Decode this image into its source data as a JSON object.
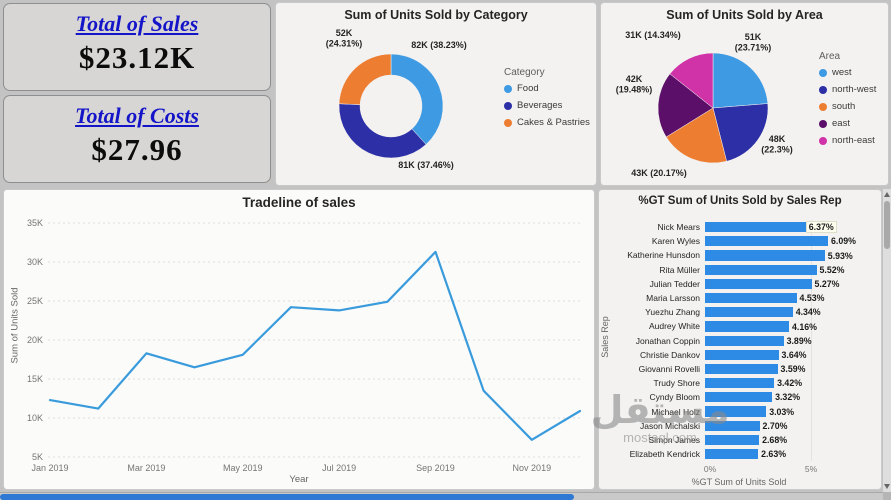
{
  "kpis": [
    {
      "title": "Total of Sales",
      "value": "$23.12K"
    },
    {
      "title": "Total of Costs",
      "value": "$27.96"
    }
  ],
  "chart_data": [
    {
      "type": "donut",
      "title": "Sum of Units Sold by Category",
      "legend_title": "Category",
      "legend_position": "right",
      "slices": [
        {
          "label": "Food",
          "value": "82K",
          "pct": 38.23,
          "pct_label": "(38.23%)",
          "color": "#3D9AE3"
        },
        {
          "label": "Beverages",
          "value": "81K",
          "pct": 37.46,
          "pct_label": "(37.46%)",
          "color": "#2C2FA5"
        },
        {
          "label": "Cakes & Pastries",
          "value": "52K",
          "pct": 24.31,
          "pct_label": "(24.31%)",
          "color": "#ED7D31"
        }
      ]
    },
    {
      "type": "pie",
      "title": "Sum of Units Sold by Area",
      "legend_title": "Area",
      "legend_position": "right",
      "slices": [
        {
          "label": "west",
          "value": "51K",
          "pct": 23.71,
          "pct_label": "(23.71%)",
          "color": "#3D9AE3"
        },
        {
          "label": "north-west",
          "value": "48K",
          "pct": 22.3,
          "pct_label": "(22.3%)",
          "color": "#2C2FA5"
        },
        {
          "label": "south",
          "value": "43K",
          "pct": 20.17,
          "pct_label": "(20.17%)",
          "color": "#ED7D31"
        },
        {
          "label": "east",
          "value": "42K",
          "pct": 19.48,
          "pct_label": "(19.48%)",
          "color": "#5B0F69"
        },
        {
          "label": "north-east",
          "value": "31K",
          "pct": 14.34,
          "pct_label": "(14.34%)",
          "color": "#D032A8"
        }
      ]
    },
    {
      "type": "line",
      "title": "Tradeline of sales",
      "xlabel": "Year",
      "ylabel": "Sum of Units Sold",
      "x": [
        "Jan 2019",
        "Feb 2019",
        "Mar 2019",
        "Apr 2019",
        "May 2019",
        "Jun 2019",
        "Jul 2019",
        "Aug 2019",
        "Sep 2019",
        "Oct 2019",
        "Nov 2019",
        "Dec 2019"
      ],
      "values": [
        12300,
        11200,
        18300,
        16500,
        18100,
        24200,
        23800,
        24900,
        31300,
        13500,
        7200,
        10900
      ],
      "x_tick_labels": [
        "Jan 2019",
        "Mar 2019",
        "May 2019",
        "Jul 2019",
        "Sep 2019",
        "Nov 2019"
      ],
      "y_tick_labels": [
        "5K",
        "10K",
        "15K",
        "20K",
        "25K",
        "30K",
        "35K"
      ],
      "ylim": [
        5000,
        35000
      ],
      "grid": true,
      "line_color": "#3A9BDC"
    },
    {
      "type": "bar",
      "orientation": "horizontal",
      "title": "%GT Sum of Units Sold by Sales Rep",
      "xlabel": "%GT Sum of Units Sold",
      "ylabel": "Sales Rep",
      "categories": [
        "Nick Mears",
        "Karen Wyles",
        "Katherine Hunsdon",
        "Rita Müller",
        "Julian Tedder",
        "Maria Larsson",
        "Yuezhu Zhang",
        "Audrey White",
        "Jonathan Coppin",
        "Christie Dankov",
        "Giovanni Rovelli",
        "Trudy Shore",
        "Cyndy Bloom",
        "Michael Holz",
        "Jason Michalski",
        "Simon James",
        "Elizabeth Kendrick"
      ],
      "values": [
        6.37,
        6.09,
        5.93,
        5.52,
        5.27,
        4.53,
        4.34,
        4.16,
        3.89,
        3.64,
        3.59,
        3.42,
        3.32,
        3.03,
        2.7,
        2.68,
        2.63
      ],
      "value_labels": [
        "6.37%",
        "6.09%",
        "5.93%",
        "5.52%",
        "5.27%",
        "4.53%",
        "4.34%",
        "4.16%",
        "3.89%",
        "3.64%",
        "3.59%",
        "3.42%",
        "3.32%",
        "3.03%",
        "2.70%",
        "2.68%",
        "2.63%"
      ],
      "x_tick_labels": [
        "0%",
        "5%"
      ],
      "xlim": [
        0,
        7
      ],
      "bar_color": "#2E8BE5",
      "highlighted_index": 0
    }
  ],
  "watermark": {
    "line1": "مستقل",
    "line2": "mostaql.com"
  }
}
